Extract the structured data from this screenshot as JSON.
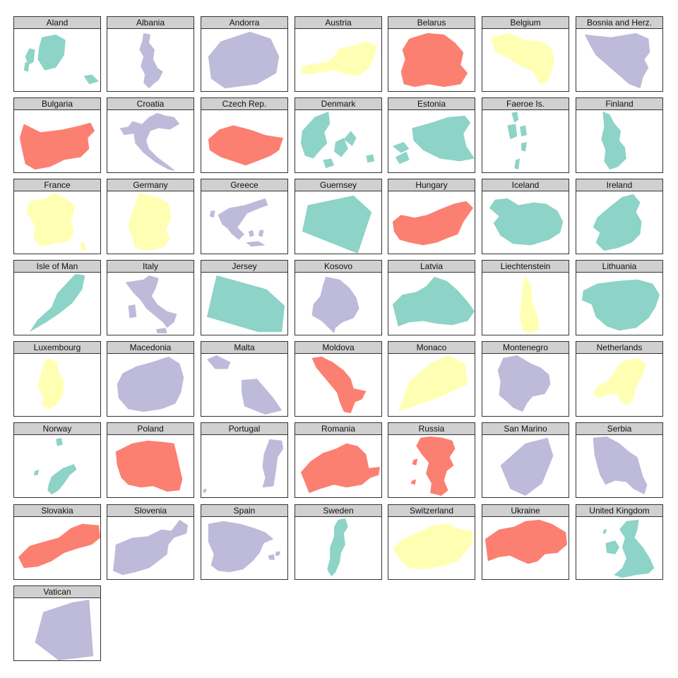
{
  "palette": {
    "red": "#fb8072",
    "yellow": "#ffffb3",
    "lavender": "#bebada",
    "teal": "#8dd3c7",
    "header": "#d0d0d0"
  },
  "countries": [
    {
      "name": "Aland",
      "color": "teal",
      "icon": "aland-shape"
    },
    {
      "name": "Albania",
      "color": "lavender",
      "icon": "albania-shape"
    },
    {
      "name": "Andorra",
      "color": "lavender",
      "icon": "andorra-shape"
    },
    {
      "name": "Austria",
      "color": "yellow",
      "icon": "austria-shape"
    },
    {
      "name": "Belarus",
      "color": "red",
      "icon": "belarus-shape"
    },
    {
      "name": "Belgium",
      "color": "yellow",
      "icon": "belgium-shape"
    },
    {
      "name": "Bosnia and Herz.",
      "color": "lavender",
      "icon": "bosnia-and-herz-shape"
    },
    {
      "name": "Bulgaria",
      "color": "red",
      "icon": "bulgaria-shape"
    },
    {
      "name": "Croatia",
      "color": "lavender",
      "icon": "croatia-shape"
    },
    {
      "name": "Czech Rep.",
      "color": "red",
      "icon": "czech-rep-shape"
    },
    {
      "name": "Denmark",
      "color": "teal",
      "icon": "denmark-shape"
    },
    {
      "name": "Estonia",
      "color": "teal",
      "icon": "estonia-shape"
    },
    {
      "name": "Faeroe Is.",
      "color": "teal",
      "icon": "faeroe-is-shape"
    },
    {
      "name": "Finland",
      "color": "teal",
      "icon": "finland-shape"
    },
    {
      "name": "France",
      "color": "yellow",
      "icon": "france-shape"
    },
    {
      "name": "Germany",
      "color": "yellow",
      "icon": "germany-shape"
    },
    {
      "name": "Greece",
      "color": "lavender",
      "icon": "greece-shape"
    },
    {
      "name": "Guernsey",
      "color": "teal",
      "icon": "guernsey-shape"
    },
    {
      "name": "Hungary",
      "color": "red",
      "icon": "hungary-shape"
    },
    {
      "name": "Iceland",
      "color": "teal",
      "icon": "iceland-shape"
    },
    {
      "name": "Ireland",
      "color": "teal",
      "icon": "ireland-shape"
    },
    {
      "name": "Isle of Man",
      "color": "teal",
      "icon": "isle-of-man-shape"
    },
    {
      "name": "Italy",
      "color": "lavender",
      "icon": "italy-shape"
    },
    {
      "name": "Jersey",
      "color": "teal",
      "icon": "jersey-shape"
    },
    {
      "name": "Kosovo",
      "color": "lavender",
      "icon": "kosovo-shape"
    },
    {
      "name": "Latvia",
      "color": "teal",
      "icon": "latvia-shape"
    },
    {
      "name": "Liechtenstein",
      "color": "yellow",
      "icon": "liechtenstein-shape"
    },
    {
      "name": "Lithuania",
      "color": "teal",
      "icon": "lithuania-shape"
    },
    {
      "name": "Luxembourg",
      "color": "yellow",
      "icon": "luxembourg-shape"
    },
    {
      "name": "Macedonia",
      "color": "lavender",
      "icon": "macedonia-shape"
    },
    {
      "name": "Malta",
      "color": "lavender",
      "icon": "malta-shape"
    },
    {
      "name": "Moldova",
      "color": "red",
      "icon": "moldova-shape"
    },
    {
      "name": "Monaco",
      "color": "yellow",
      "icon": "monaco-shape"
    },
    {
      "name": "Montenegro",
      "color": "lavender",
      "icon": "montenegro-shape"
    },
    {
      "name": "Netherlands",
      "color": "yellow",
      "icon": "netherlands-shape"
    },
    {
      "name": "Norway",
      "color": "teal",
      "icon": "norway-shape"
    },
    {
      "name": "Poland",
      "color": "red",
      "icon": "poland-shape"
    },
    {
      "name": "Portugal",
      "color": "lavender",
      "icon": "portugal-shape"
    },
    {
      "name": "Romania",
      "color": "red",
      "icon": "romania-shape"
    },
    {
      "name": "Russia",
      "color": "red",
      "icon": "russia-shape"
    },
    {
      "name": "San Marino",
      "color": "lavender",
      "icon": "san-marino-shape"
    },
    {
      "name": "Serbia",
      "color": "lavender",
      "icon": "serbia-shape"
    },
    {
      "name": "Slovakia",
      "color": "red",
      "icon": "slovakia-shape"
    },
    {
      "name": "Slovenia",
      "color": "lavender",
      "icon": "slovenia-shape"
    },
    {
      "name": "Spain",
      "color": "lavender",
      "icon": "spain-shape"
    },
    {
      "name": "Sweden",
      "color": "teal",
      "icon": "sweden-shape"
    },
    {
      "name": "Switzerland",
      "color": "yellow",
      "icon": "switzerland-shape"
    },
    {
      "name": "Ukraine",
      "color": "red",
      "icon": "ukraine-shape"
    },
    {
      "name": "United Kingdom",
      "color": "teal",
      "icon": "united-kingdom-shape"
    },
    {
      "name": "Vatican",
      "color": "lavender",
      "icon": "vatican-shape"
    }
  ]
}
